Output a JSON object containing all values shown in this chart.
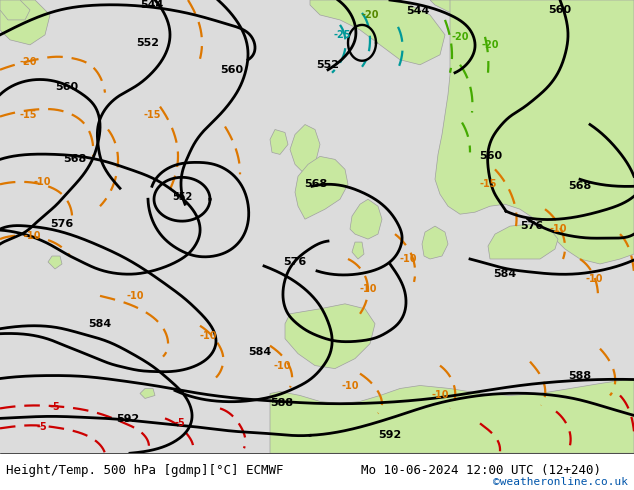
{
  "title_left": "Height/Temp. 500 hPa [gdmp][°C] ECMWF",
  "title_right": "Mo 10-06-2024 12:00 UTC (12+240)",
  "watermark": "©weatheronline.co.uk",
  "bg_color": "#d8d8d8",
  "ocean_color": "#e0e0e0",
  "land_green": "#c8e8a0",
  "land_gray": "#b0b0b0",
  "text_color": "#000000",
  "watermark_color": "#0055aa",
  "figsize": [
    6.34,
    4.9
  ],
  "dpi": 100
}
